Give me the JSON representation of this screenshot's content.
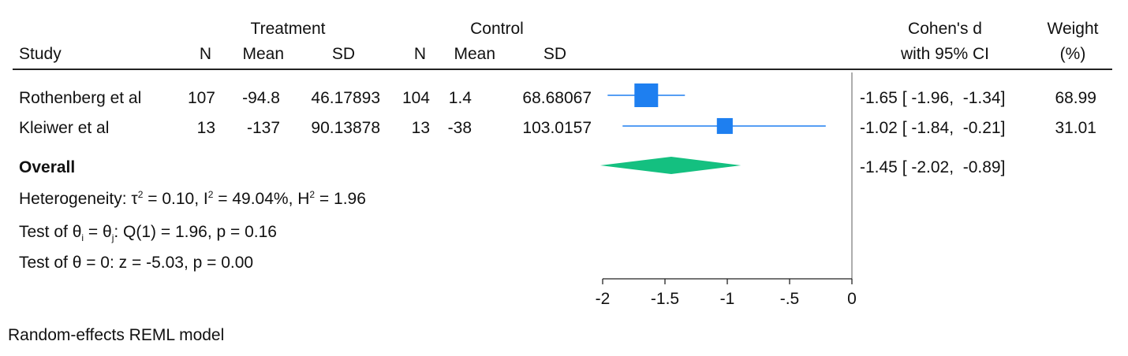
{
  "header": {
    "treatment": "Treatment",
    "control": "Control",
    "study": "Study",
    "n": "N",
    "mean": "Mean",
    "sd": "SD",
    "effect_line1": "Cohen's d",
    "effect_line2": "with 95% CI",
    "weight_line1": "Weight",
    "weight_line2": "(%)"
  },
  "studies": [
    {
      "name": "Rothenberg et al",
      "t_n": "107",
      "t_mean": "-94.8",
      "t_sd": "46.17893",
      "c_n": "104",
      "c_mean": "1.4",
      "c_sd": "68.68067",
      "d": -1.65,
      "lo": -1.96,
      "hi": -1.34,
      "ci_text": "-1.65 [ -1.96,  -1.34]",
      "weight": 68.99,
      "weight_text": "68.99"
    },
    {
      "name": "Kleiwer et al",
      "t_n": "13",
      "t_mean": "-137",
      "t_sd": "90.13878",
      "c_n": "13",
      "c_mean": "-38",
      "c_sd": "103.0157",
      "d": -1.02,
      "lo": -1.84,
      "hi": -0.21,
      "ci_text": "-1.02 [ -1.84,  -0.21]",
      "weight": 31.01,
      "weight_text": "31.01"
    }
  ],
  "overall": {
    "label": "Overall",
    "d": -1.45,
    "lo": -2.02,
    "hi": -0.89,
    "ci_text": "-1.45 [ -2.02,  -0.89]"
  },
  "stats": {
    "heterogeneity": "Heterogeneity: τ² = 0.10, I² = 49.04%, H² = 1.96",
    "test_q": "Test of θi = θj: Q(1) = 1.96, p = 0.16",
    "test_z": "Test of θ = 0: z = -5.03, p = 0.00"
  },
  "footer": "Random-effects REML model",
  "chart_data": {
    "type": "scatter",
    "subtype": "forest-plot",
    "x_ticks": [
      -2,
      -1.5,
      -1,
      -0.5,
      0
    ],
    "x_tick_labels": [
      "-2",
      "-1.5",
      "-1",
      "-.5",
      "0"
    ],
    "xlim": [
      -2,
      0
    ],
    "null_line": 0,
    "colors": {
      "study_marker": "#1e7ff0",
      "overall_diamond": "#14c080",
      "axis": "#222222"
    }
  }
}
